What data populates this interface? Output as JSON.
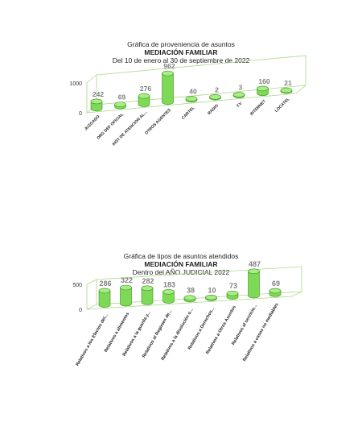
{
  "chart_data": [
    {
      "type": "bar",
      "title": "Gráfica de proveniencia de asuntos",
      "subtitle": "MEDIACIÓN FAMILIAR",
      "subtitle2": "Del  10 de enero al  30 de septiembre de  2022",
      "categories": [
        "JUZGADO",
        "ORG DEF OFICIAL",
        "INST DE ATENCION AL...",
        "OTROS AGENTES",
        "CARTEL",
        "RADIO",
        "T.V",
        "INTERNET",
        "LOCATEL"
      ],
      "values": [
        242,
        69,
        276,
        962,
        40,
        2,
        3,
        160,
        21
      ],
      "y_ticks": [
        "0",
        "1000"
      ],
      "ylim": [
        0,
        1000
      ],
      "grid": false,
      "colors": {
        "bar": "#7ed957",
        "bar_dark": "#3f8f1f",
        "frame": "#a9d98a",
        "label": "#7f7f7f"
      }
    },
    {
      "type": "bar",
      "title": "Gráfica de tipos de asuntos atendidos",
      "subtitle": "MEDIACIÓN FAMILIAR",
      "subtitle2": "Dentro del AÑO JUDICIAL 2022",
      "categories": [
        "Relativos a los Efectos del...",
        "Relativos a alimentos",
        "Relativos a la guarda y...",
        "Relativos al Regimen de...",
        "Relativos a la disolución o...",
        "Relativos a Derechos...",
        "Relativos a Otros Asuntos",
        "Relativos al servicio...",
        "Relativos a casos no mediables"
      ],
      "values": [
        286,
        322,
        282,
        183,
        38,
        10,
        73,
        487,
        69
      ],
      "y_ticks": [
        "0",
        "500"
      ],
      "ylim": [
        0,
        500
      ],
      "grid": false,
      "colors": {
        "bar": "#7ed957",
        "bar_dark": "#3f8f1f",
        "frame": "#a9d98a",
        "label": "#7f7f7f"
      }
    }
  ]
}
